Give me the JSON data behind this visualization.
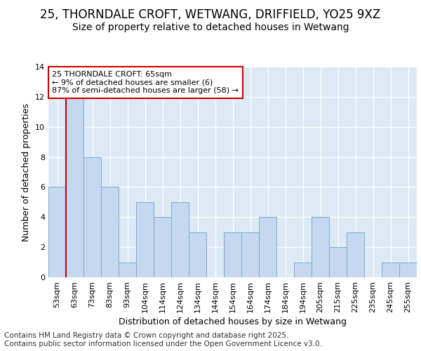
{
  "title1": "25, THORNDALE CROFT, WETWANG, DRIFFIELD, YO25 9XZ",
  "title2": "Size of property relative to detached houses in Wetwang",
  "xlabel": "Distribution of detached houses by size in Wetwang",
  "ylabel": "Number of detached properties",
  "footer": "Contains HM Land Registry data © Crown copyright and database right 2025.\nContains public sector information licensed under the Open Government Licence v3.0.",
  "categories": [
    "53sqm",
    "63sqm",
    "73sqm",
    "83sqm",
    "93sqm",
    "104sqm",
    "114sqm",
    "124sqm",
    "134sqm",
    "144sqm",
    "154sqm",
    "164sqm",
    "174sqm",
    "184sqm",
    "194sqm",
    "205sqm",
    "215sqm",
    "225sqm",
    "235sqm",
    "245sqm",
    "255sqm"
  ],
  "values": [
    6,
    12,
    8,
    6,
    1,
    5,
    4,
    5,
    3,
    0,
    3,
    3,
    4,
    0,
    1,
    4,
    2,
    3,
    0,
    1,
    1
  ],
  "bar_color": "#c5d8ef",
  "bar_edge_color": "#7aadd4",
  "highlight_line_color": "#cc0000",
  "highlight_bar_index": 1,
  "annotation_box_text": "25 THORNDALE CROFT: 65sqm\n← 9% of detached houses are smaller (6)\n87% of semi-detached houses are larger (58) →",
  "annotation_box_color": "#cc0000",
  "ylim": [
    0,
    14
  ],
  "yticks": [
    0,
    2,
    4,
    6,
    8,
    10,
    12,
    14
  ],
  "fig_bg_color": "#ffffff",
  "plot_bg_color": "#ddeaf6",
  "grid_color": "#ffffff",
  "title_fontsize": 12,
  "subtitle_fontsize": 10,
  "axis_label_fontsize": 9,
  "tick_fontsize": 8,
  "annotation_fontsize": 8,
  "footer_fontsize": 7.5
}
